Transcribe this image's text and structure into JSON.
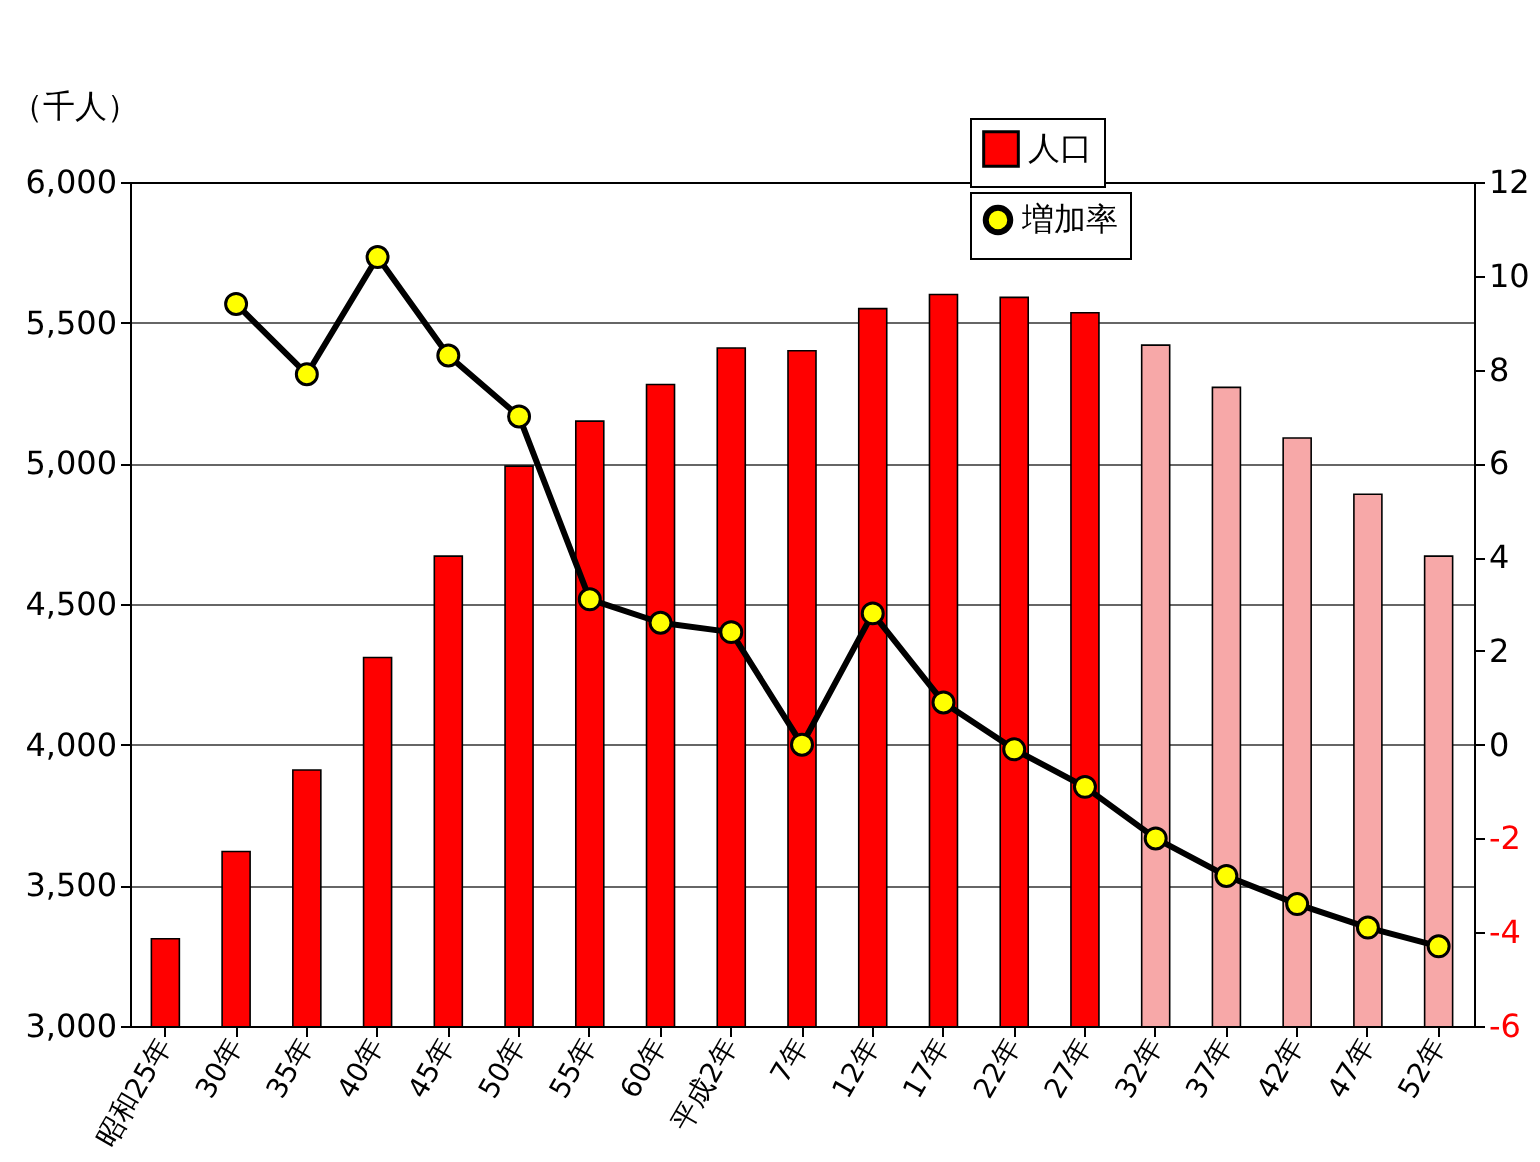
{
  "chart_data": {
    "type": "bar",
    "ylabel": "（千人）",
    "categories": [
      "昭和25年",
      "30年",
      "35年",
      "40年",
      "45年",
      "50年",
      "55年",
      "60年",
      "平成2年",
      "7年",
      "12年",
      "17年",
      "22年",
      "27年",
      "32年",
      "37年",
      "42年",
      "47年",
      "52年"
    ],
    "series": [
      {
        "name": "人口",
        "color": "#ff0000",
        "colors": [
          "#ff0000",
          "#ff0000",
          "#ff0000",
          "#ff0000",
          "#ff0000",
          "#ff0000",
          "#ff0000",
          "#ff0000",
          "#ff0000",
          "#ff0000",
          "#ff0000",
          "#ff0000",
          "#ff0000",
          "#ff0000",
          "#f7a8a8",
          "#f7a8a8",
          "#f7a8a8",
          "#f7a8a8",
          "#f7a8a8"
        ],
        "values": [
          3310,
          3620,
          3910,
          4310,
          4670,
          4990,
          5150,
          5280,
          5410,
          5400,
          5550,
          5600,
          5590,
          5535,
          5420,
          5270,
          5090,
          4890,
          4670
        ]
      },
      {
        "name": "増加率",
        "type": "line",
        "axis": "y2",
        "color": "#000000",
        "values": [
          null,
          9.4,
          7.9,
          10.4,
          8.3,
          7.0,
          3.1,
          2.6,
          2.4,
          0,
          2.8,
          0.9,
          -0.1,
          -0.9,
          -2.0,
          -2.8,
          -3.4,
          -3.9,
          -4.3
        ]
      }
    ],
    "ylim": [
      3000,
      6000
    ],
    "yticks": [
      {
        "value": 3000,
        "label": "3,000"
      },
      {
        "value": 3500,
        "label": "3,500"
      },
      {
        "value": 4000,
        "label": "4,000"
      },
      {
        "value": 4500,
        "label": "4,500"
      },
      {
        "value": 5000,
        "label": "5,000"
      },
      {
        "value": 5500,
        "label": "5,500"
      },
      {
        "value": 6000,
        "label": "6,000"
      }
    ],
    "y2lim": [
      -6,
      12
    ],
    "y2ticks": [
      -6,
      -4,
      -2,
      0,
      2,
      4,
      6,
      8,
      10,
      12
    ],
    "grid": "y",
    "legend": "top right",
    "marker": "circle",
    "line_style": "solid"
  }
}
